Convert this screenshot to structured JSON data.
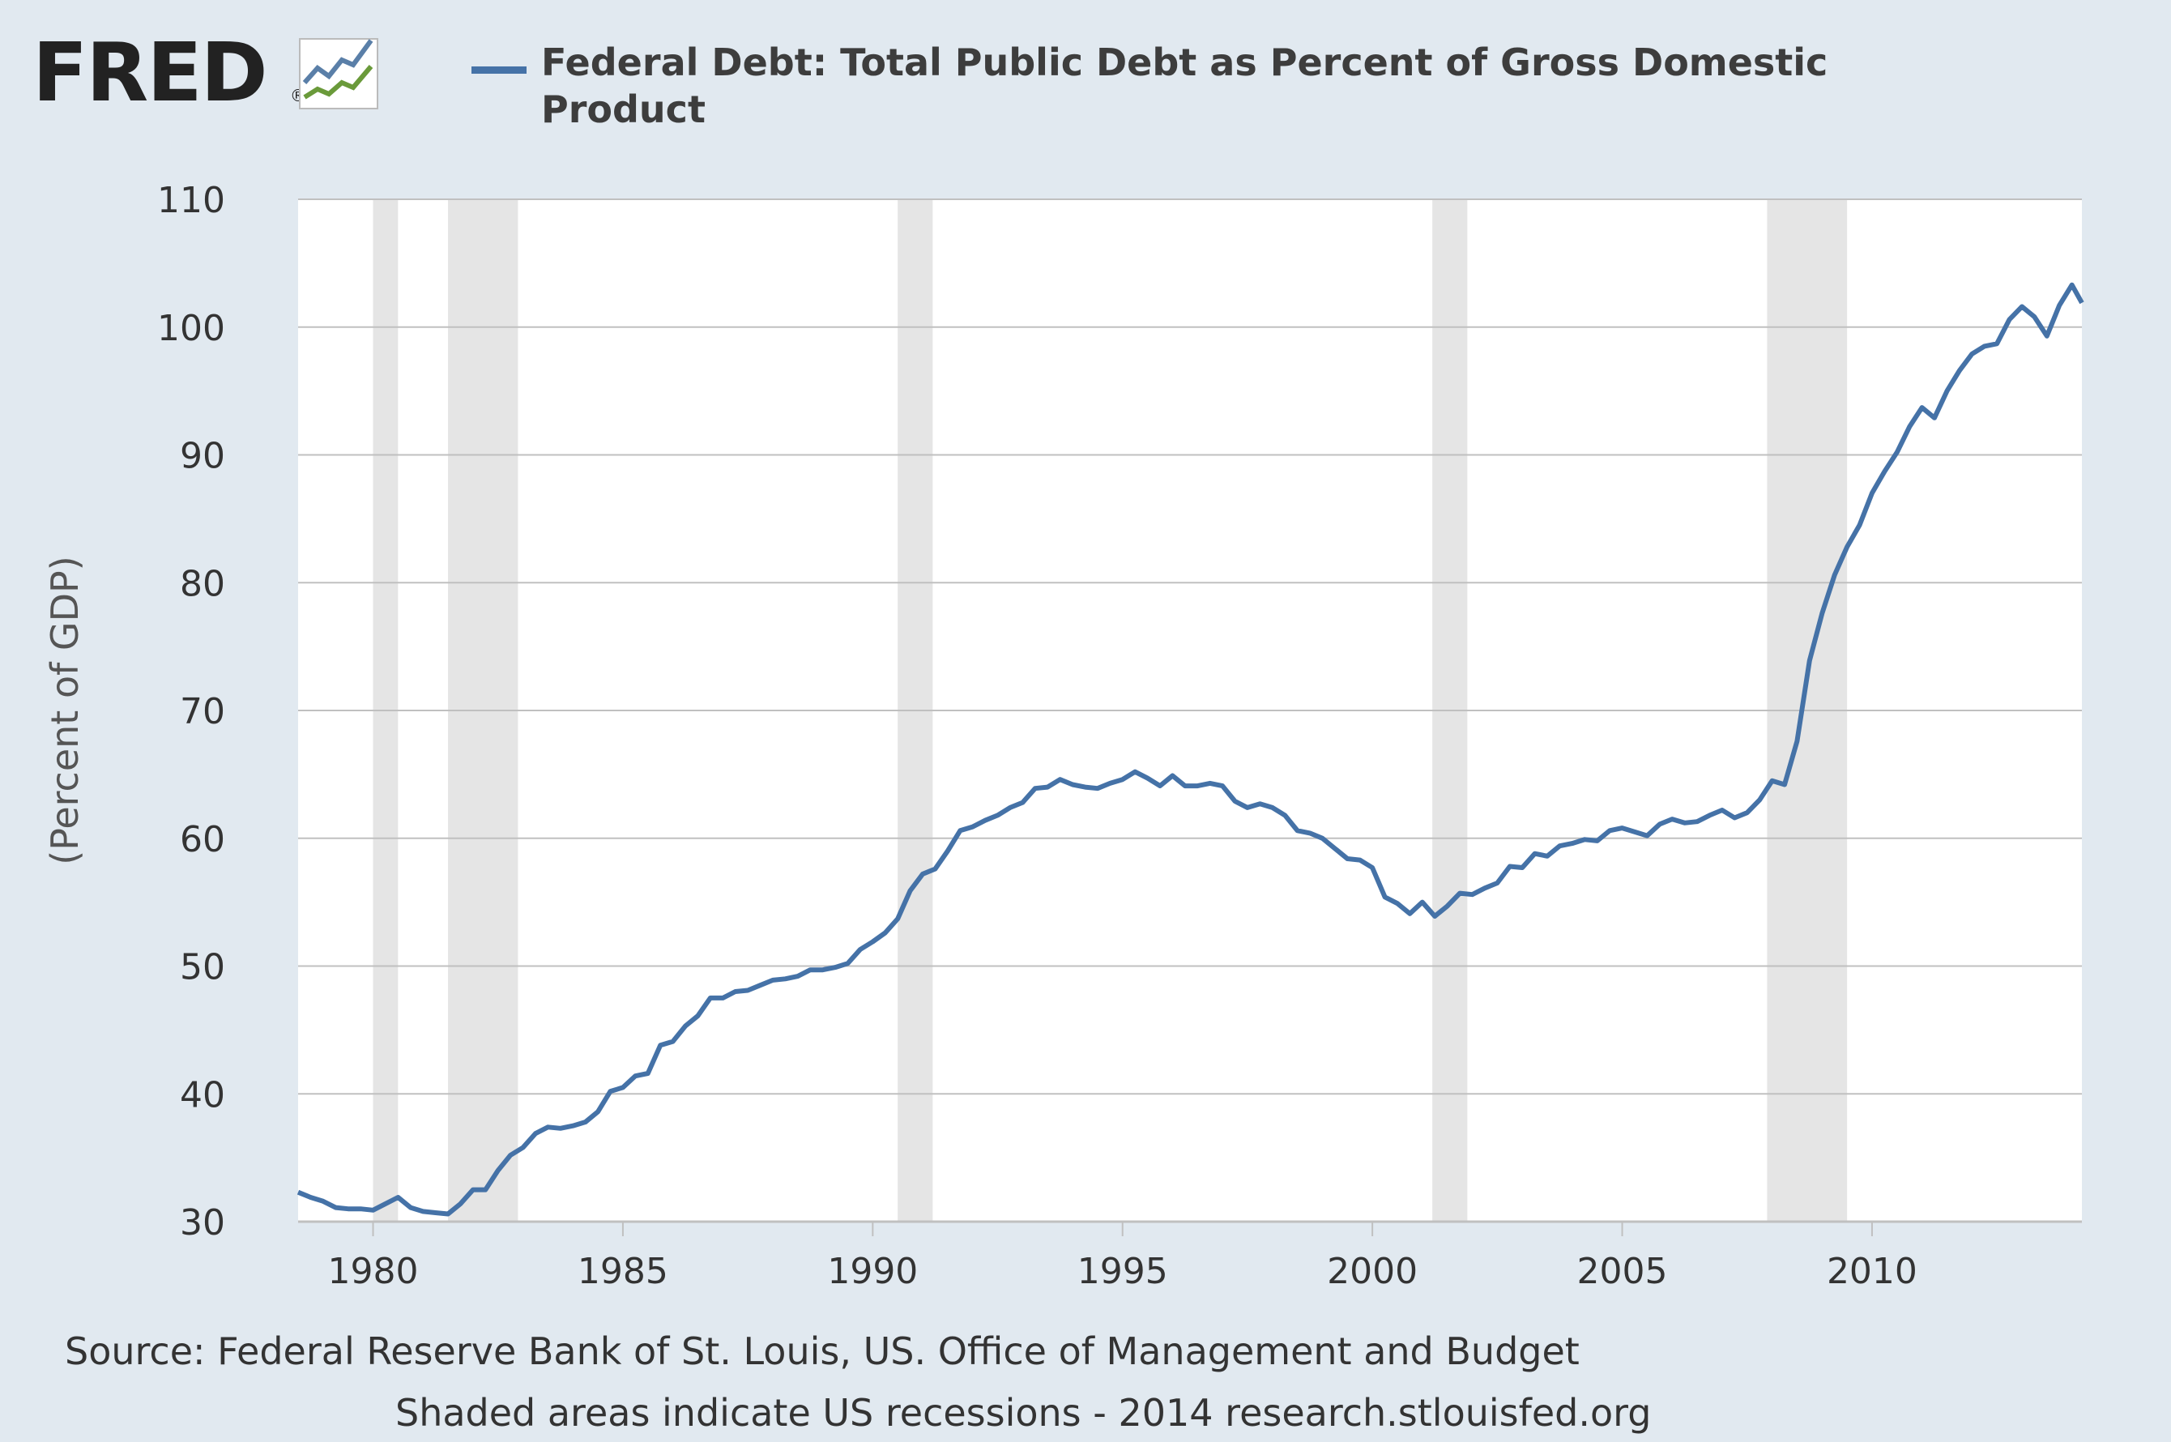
{
  "brand": {
    "name": "FRED",
    "reg_mark": "®"
  },
  "colors": {
    "background": "#e1e9f0",
    "plot_background": "#ffffff",
    "series": "#4572a7",
    "recession": "#e5e5e5",
    "gridline": "#c0c0c0",
    "logo_blue": "#5a7fa8",
    "logo_green": "#6a9a3a"
  },
  "legend": {
    "label": "Federal Debt: Total Public Debt as Percent of Gross Domestic Product"
  },
  "source": "Source: Federal Reserve Bank of St. Louis, US. Office of Management and Budget",
  "note": "Shaded areas indicate US recessions - 2014 research.stlouisfed.org",
  "chart_data": {
    "type": "line",
    "title": "",
    "xlabel": "",
    "ylabel": "(Percent of GDP)",
    "xlim": [
      1978.5,
      2014.2
    ],
    "ylim": [
      30,
      110
    ],
    "yticks": [
      30,
      40,
      50,
      60,
      70,
      80,
      90,
      100,
      110
    ],
    "xticks": [
      1980,
      1985,
      1990,
      1995,
      2000,
      2005,
      2010
    ],
    "grid": "horizontal",
    "legend_position": "top",
    "recessions": [
      [
        1980.0,
        1980.5
      ],
      [
        1981.5,
        1982.9
      ],
      [
        1990.5,
        1991.2
      ],
      [
        2001.2,
        2001.9
      ],
      [
        2007.9,
        2009.5
      ]
    ],
    "series": [
      {
        "name": "Federal Debt: Total Public Debt as Percent of Gross Domestic Product",
        "color": "#4572a7",
        "x": [
          1978.5,
          1978.75,
          1979.0,
          1979.25,
          1979.5,
          1979.75,
          1980.0,
          1980.25,
          1980.5,
          1980.75,
          1981.0,
          1981.25,
          1981.5,
          1981.75,
          1982.0,
          1982.25,
          1982.5,
          1982.75,
          1983.0,
          1983.25,
          1983.5,
          1983.75,
          1984.0,
          1984.25,
          1984.5,
          1984.75,
          1985.0,
          1985.25,
          1985.5,
          1985.75,
          1986.0,
          1986.25,
          1986.5,
          1986.75,
          1987.0,
          1987.25,
          1987.5,
          1987.75,
          1988.0,
          1988.25,
          1988.5,
          1988.75,
          1989.0,
          1989.25,
          1989.5,
          1989.75,
          1990.0,
          1990.25,
          1990.5,
          1990.75,
          1991.0,
          1991.25,
          1991.5,
          1991.75,
          1992.0,
          1992.25,
          1992.5,
          1992.75,
          1993.0,
          1993.25,
          1993.5,
          1993.75,
          1994.0,
          1994.25,
          1994.5,
          1994.75,
          1995.0,
          1995.25,
          1995.5,
          1995.75,
          1996.0,
          1996.25,
          1996.5,
          1996.75,
          1997.0,
          1997.25,
          1997.5,
          1997.75,
          1998.0,
          1998.25,
          1998.5,
          1998.75,
          1999.0,
          1999.25,
          1999.5,
          1999.75,
          2000.0,
          2000.25,
          2000.5,
          2000.75,
          2001.0,
          2001.25,
          2001.5,
          2001.75,
          2002.0,
          2002.25,
          2002.5,
          2002.75,
          2003.0,
          2003.25,
          2003.5,
          2003.75,
          2004.0,
          2004.25,
          2004.5,
          2004.75,
          2005.0,
          2005.25,
          2005.5,
          2005.75,
          2006.0,
          2006.25,
          2006.5,
          2006.75,
          2007.0,
          2007.25,
          2007.5,
          2007.75,
          2008.0,
          2008.25,
          2008.5,
          2008.75,
          2009.0,
          2009.25,
          2009.5,
          2009.75,
          2010.0,
          2010.25,
          2010.5,
          2010.75,
          2011.0,
          2011.25,
          2011.5,
          2011.75,
          2012.0,
          2012.25,
          2012.5,
          2012.75,
          2013.0,
          2013.25,
          2013.5,
          2013.75,
          2014.0,
          2014.2
        ],
        "y": [
          32.3,
          31.9,
          31.6,
          31.1,
          31.0,
          31.0,
          30.9,
          31.4,
          31.9,
          31.1,
          30.8,
          30.7,
          30.6,
          31.4,
          32.5,
          32.5,
          34.0,
          35.2,
          35.8,
          36.9,
          37.4,
          37.3,
          37.5,
          37.8,
          38.6,
          40.2,
          40.5,
          41.4,
          41.6,
          43.8,
          44.1,
          45.3,
          46.1,
          47.5,
          47.5,
          48.0,
          48.1,
          48.5,
          48.9,
          49.0,
          49.2,
          49.7,
          49.7,
          49.9,
          50.2,
          51.3,
          51.9,
          52.6,
          53.7,
          55.9,
          57.2,
          57.6,
          59.0,
          60.6,
          60.9,
          61.4,
          61.8,
          62.4,
          62.8,
          63.9,
          64.0,
          64.6,
          64.2,
          64.0,
          63.9,
          64.3,
          64.6,
          65.2,
          64.7,
          64.1,
          64.9,
          64.1,
          64.1,
          64.3,
          64.1,
          62.9,
          62.4,
          62.7,
          62.4,
          61.8,
          60.6,
          60.4,
          60.0,
          59.2,
          58.4,
          58.3,
          57.7,
          55.4,
          54.9,
          54.1,
          55.0,
          53.9,
          54.7,
          55.7,
          55.6,
          56.1,
          56.5,
          57.8,
          57.7,
          58.8,
          58.6,
          59.4,
          59.6,
          59.9,
          59.8,
          60.6,
          60.8,
          60.5,
          60.2,
          61.1,
          61.5,
          61.2,
          61.3,
          61.8,
          62.2,
          61.6,
          62.0,
          63.0,
          64.5,
          64.2,
          67.6,
          73.9,
          77.6,
          80.6,
          82.8,
          84.5,
          87.0,
          88.7,
          90.2,
          92.2,
          93.7,
          92.9,
          95.0,
          96.6,
          97.9,
          98.5,
          98.7,
          100.6,
          101.6,
          100.8,
          99.3,
          101.7,
          103.3,
          101.9
        ]
      }
    ]
  }
}
